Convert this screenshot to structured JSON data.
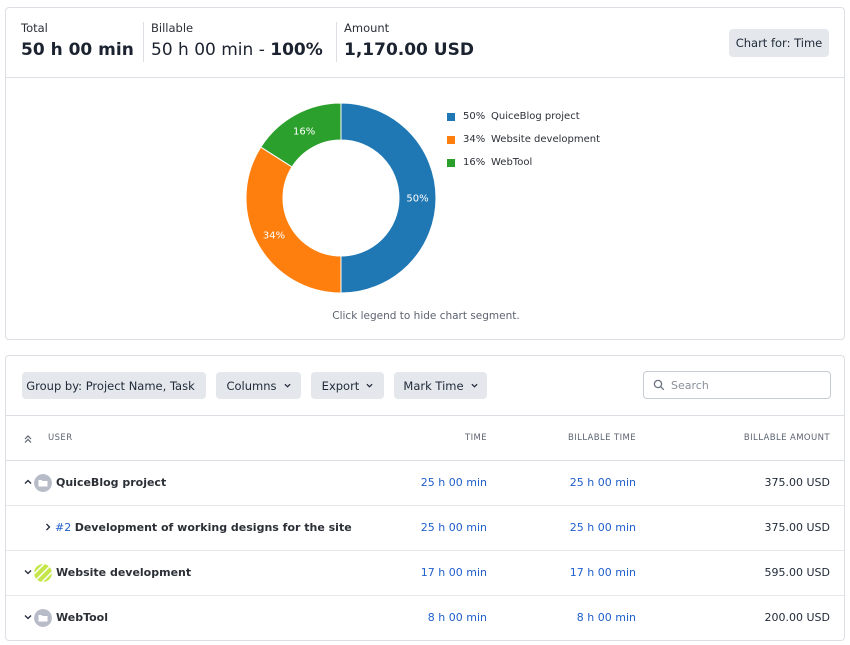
{
  "summary": {
    "total": {
      "label": "Total",
      "value": "50 h 00 min"
    },
    "billable": {
      "label": "Billable",
      "value": "50 h 00 min",
      "separator": " - ",
      "percent": "100%"
    },
    "amount": {
      "label": "Amount",
      "value": "1,170.00 USD"
    },
    "chart_button": "Chart for: Time"
  },
  "chart_data": {
    "type": "pie",
    "categories": [
      "QuiceBlog project",
      "Website development",
      "WebTool"
    ],
    "values": [
      50,
      34,
      16
    ],
    "labels": [
      "50%",
      "34%",
      "16%"
    ],
    "colors": [
      "#1f77b4",
      "#ff7f0e",
      "#2ca02c"
    ],
    "donut": true,
    "legend_position": "right"
  },
  "legend": [
    {
      "pct": "50%",
      "label": "QuiceBlog project",
      "color": "#1f77b4"
    },
    {
      "pct": "34%",
      "label": "Website development",
      "color": "#ff7f0e"
    },
    {
      "pct": "16%",
      "label": "WebTool",
      "color": "#2ca02c"
    }
  ],
  "chart_hint": "Click legend to hide chart segment.",
  "toolbar": {
    "group_by": "Group by: Project Name, Task",
    "columns": "Columns",
    "export": "Export",
    "mark_time": "Mark Time",
    "search_placeholder": "Search",
    "search_value": ""
  },
  "table": {
    "columns": {
      "user": "User",
      "time": "Time",
      "billable_time": "Billable Time",
      "billable_amount": "Billable Amount"
    },
    "rows": [
      {
        "name": "QuiceBlog project",
        "time": "25 h 00 min",
        "billable_time": "25 h 00 min",
        "amount": "375.00 USD",
        "expanded": true,
        "avatar": "folder-icon"
      },
      {
        "task_no": "#2",
        "name": "Development of working designs for the site",
        "time": "25 h 00 min",
        "billable_time": "25 h 00 min",
        "amount": "375.00 USD",
        "child": true
      },
      {
        "name": "Website development",
        "time": "17 h 00 min",
        "billable_time": "17 h 00 min",
        "amount": "595.00 USD",
        "expanded": false,
        "avatar": "striped-avatar"
      },
      {
        "name": "WebTool",
        "time": "8 h 00 min",
        "billable_time": "8 h 00 min",
        "amount": "200.00 USD",
        "expanded": false,
        "avatar": "folder-icon"
      }
    ]
  },
  "colors": {
    "link": "#1f5fcc",
    "button_bg": "#e4e8ed",
    "border": "#dcdfe4",
    "striped_avatar": "#c5e64a"
  }
}
